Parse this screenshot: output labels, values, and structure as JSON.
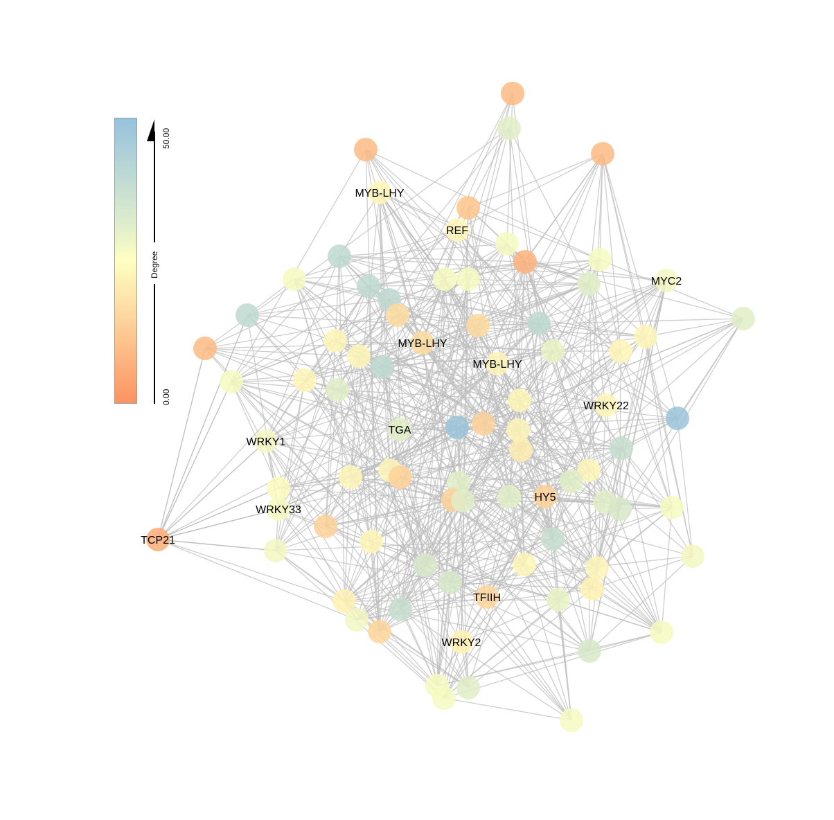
{
  "legend": {
    "title": "Degree",
    "max_label": "50.00",
    "min_label": "0.00",
    "min": 0,
    "max": 50,
    "colors": {
      "low": "#fc8d59",
      "mid": "#ffffbf",
      "high": "#91bfdb"
    }
  },
  "edge_color": "#bdbdbd",
  "nodes": [
    {
      "degree": 10
    },
    {
      "degree": 32
    },
    {
      "degree": 10
    },
    {
      "degree": 10
    },
    {
      "degree": 23,
      "label": "MYB-LHY"
    },
    {
      "degree": 12
    },
    {
      "degree": 23,
      "label": "REF"
    },
    {
      "degree": 27
    },
    {
      "degree": 40
    },
    {
      "degree": 8
    },
    {
      "degree": 27
    },
    {
      "degree": 27
    },
    {
      "degree": 40
    },
    {
      "degree": 27
    },
    {
      "degree": 27
    },
    {
      "degree": 32
    },
    {
      "degree": 28,
      "label": "MYC2"
    },
    {
      "degree": 40
    },
    {
      "degree": 40
    },
    {
      "degree": 17
    },
    {
      "degree": 17
    },
    {
      "degree": 40
    },
    {
      "degree": 32
    },
    {
      "degree": 10
    },
    {
      "degree": 23
    },
    {
      "degree": 17,
      "label": "MYB-LHY"
    },
    {
      "degree": 23
    },
    {
      "degree": 23
    },
    {
      "degree": 40
    },
    {
      "degree": 30
    },
    {
      "degree": 23
    },
    {
      "degree": 23,
      "label": "MYB-LHY"
    },
    {
      "degree": 27
    },
    {
      "degree": 23
    },
    {
      "degree": 32
    },
    {
      "degree": 23
    },
    {
      "degree": 23,
      "label": "WRKY22"
    },
    {
      "degree": 48
    },
    {
      "degree": 48
    },
    {
      "degree": 15
    },
    {
      "degree": 32,
      "label": "TGA"
    },
    {
      "degree": 23
    },
    {
      "degree": 21
    },
    {
      "degree": 28,
      "label": "WRKY1"
    },
    {
      "degree": 38
    },
    {
      "degree": 23
    },
    {
      "degree": 15
    },
    {
      "degree": 23
    },
    {
      "degree": 23
    },
    {
      "degree": 32
    },
    {
      "degree": 32
    },
    {
      "degree": 26
    },
    {
      "degree": 15
    },
    {
      "degree": 32
    },
    {
      "degree": 32
    },
    {
      "degree": 15,
      "label": "HY5"
    },
    {
      "degree": 32
    },
    {
      "degree": 34
    },
    {
      "degree": 27
    },
    {
      "degree": 27,
      "label": "WRKY33"
    },
    {
      "degree": 15
    },
    {
      "degree": 23
    },
    {
      "degree": 7,
      "label": "TCP21"
    },
    {
      "degree": 38
    },
    {
      "degree": 28
    },
    {
      "degree": 34
    },
    {
      "degree": 23
    },
    {
      "degree": 23
    },
    {
      "degree": 28
    },
    {
      "degree": 34
    },
    {
      "degree": 22
    },
    {
      "degree": 16,
      "label": "TFIIH"
    },
    {
      "degree": 30
    },
    {
      "degree": 22
    },
    {
      "degree": 38
    },
    {
      "degree": 28
    },
    {
      "degree": 16
    },
    {
      "degree": 27
    },
    {
      "degree": 22,
      "label": "WRKY2"
    },
    {
      "degree": 34
    },
    {
      "degree": 27
    },
    {
      "degree": 32
    },
    {
      "degree": 27
    },
    {
      "degree": 27
    }
  ]
}
